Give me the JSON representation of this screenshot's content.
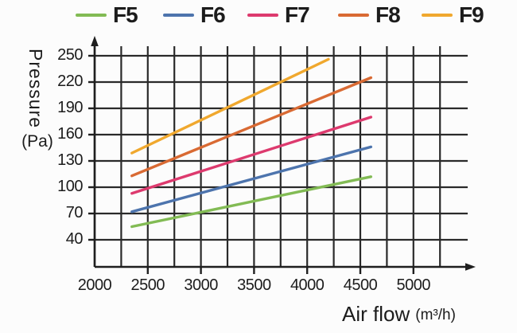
{
  "legend": {
    "items": [
      {
        "label": "F5",
        "color": "#82bb54"
      },
      {
        "label": "F6",
        "color": "#4d74ad"
      },
      {
        "label": "F7",
        "color": "#dd3a6e"
      },
      {
        "label": "F8",
        "color": "#d96a33"
      },
      {
        "label": "F9",
        "color": "#f0a82e"
      }
    ]
  },
  "y_axis": {
    "title": "Pressure",
    "unit": "(Pa)",
    "ticks": [
      "250",
      "220",
      "190",
      "160",
      "130",
      "100",
      "70",
      "40"
    ]
  },
  "x_axis": {
    "title": "Air flow",
    "unit": "(m³/h)",
    "ticks": [
      "2000",
      "2500",
      "3000",
      "3500",
      "4000",
      "4500",
      "5000"
    ]
  },
  "colors": {
    "grid": "#2a2a2a",
    "axis": "#1f1f1f",
    "text": "#1c1c1c",
    "background": "#fcfcfc"
  },
  "chart_data": {
    "type": "line",
    "title": "",
    "xlabel": "Air flow (m³/h)",
    "ylabel": "Pressure (Pa)",
    "grid": true,
    "legend_position": "top",
    "xlim": [
      2000,
      5400
    ],
    "ylim": [
      10,
      265
    ],
    "x_grid_step": 250,
    "y_grid_step": 30,
    "x_gridlines": [
      2000,
      5250
    ],
    "x_tick_values": [
      2000,
      2500,
      3000,
      3500,
      4000,
      4500,
      5000
    ],
    "y_tick_values": [
      250,
      220,
      190,
      160,
      130,
      100,
      70,
      40
    ],
    "series": [
      {
        "name": "F5",
        "color": "#82bb54",
        "points": [
          [
            2350,
            55
          ],
          [
            4600,
            112
          ]
        ]
      },
      {
        "name": "F6",
        "color": "#4d74ad",
        "points": [
          [
            2350,
            72
          ],
          [
            4600,
            146
          ]
        ]
      },
      {
        "name": "F7",
        "color": "#dd3a6e",
        "points": [
          [
            2350,
            93
          ],
          [
            4600,
            180
          ]
        ]
      },
      {
        "name": "F8",
        "color": "#d96a33",
        "points": [
          [
            2350,
            113
          ],
          [
            4600,
            225
          ]
        ]
      },
      {
        "name": "F9",
        "color": "#f0a82e",
        "points": [
          [
            2350,
            139
          ],
          [
            4200,
            246
          ]
        ]
      }
    ]
  }
}
